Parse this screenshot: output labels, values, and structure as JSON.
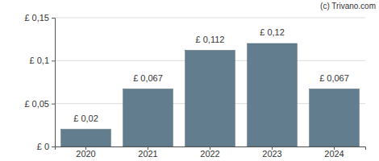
{
  "chart_data": {
    "type": "bar",
    "categories": [
      "2020",
      "2021",
      "2022",
      "2023",
      "2024"
    ],
    "values": [
      0.02,
      0.067,
      0.112,
      0.12,
      0.067
    ],
    "value_labels": [
      "£ 0,02",
      "£ 0,067",
      "£ 0,112",
      "£ 0,12",
      "£ 0,067"
    ],
    "color": "#627d8e",
    "ylim": [
      0,
      0.15
    ],
    "yticks": [
      {
        "value": 0,
        "label": "£ 0"
      },
      {
        "value": 0.05,
        "label": "£ 0,05"
      },
      {
        "value": 0.1,
        "label": "£ 0,1"
      },
      {
        "value": 0.15,
        "label": "£ 0,15"
      }
    ],
    "grid": true,
    "data_labels": true,
    "annotations": [
      "(c) Trivano.com"
    ]
  }
}
